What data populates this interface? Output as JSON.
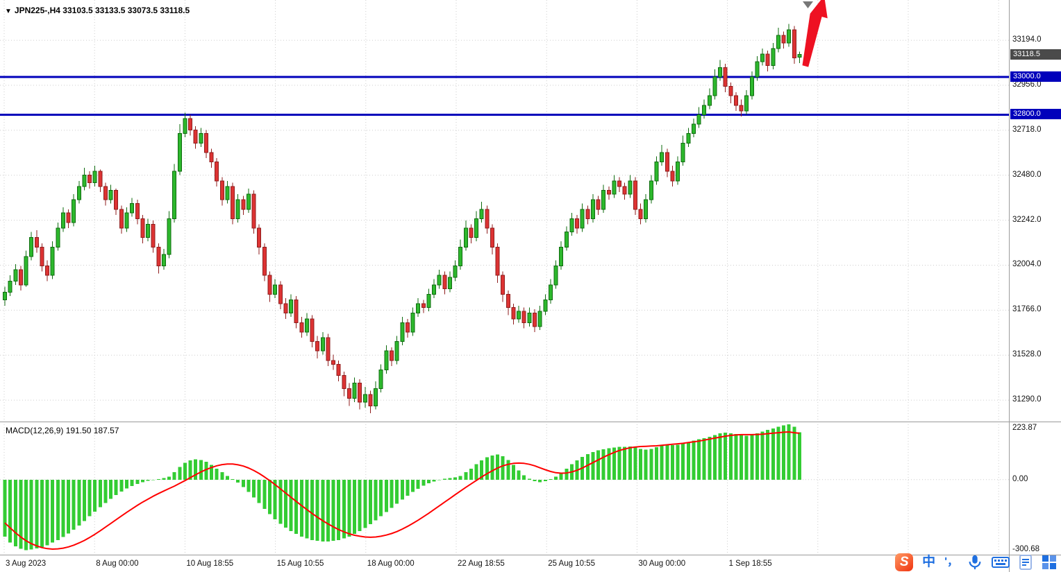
{
  "header": {
    "dropdown_icon": "▼",
    "title": "JPN225-,H4",
    "ohlc_text": "33103.5 33133.5 33073.5 33118.5"
  },
  "colors": {
    "candle_up": "#2db82d",
    "candle_up_border": "#0e6b0e",
    "candle_down": "#dd3333",
    "candle_down_border": "#8f1d1d",
    "grid": "#cccccc",
    "level_line": "#0000bb",
    "level_badge_bg": "#0000bb",
    "current_price_badge_bg": "#4a4a4a",
    "macd_histogram": "#33cc33",
    "macd_signal": "#ff0000",
    "arrow": "#ee1122",
    "shift_marker": "#777777",
    "taskbar_blue": "#1f6fe0",
    "sogou_red": "#f0330f",
    "axis_text": "#111111"
  },
  "chart_data": {
    "type": "candlestick",
    "symbol": "JPN225-",
    "timeframe": "H4",
    "current_bar": {
      "open": 33103.5,
      "high": 33133.5,
      "low": 33073.5,
      "close": 33118.5
    },
    "current_price_label": "33118.5",
    "horizontal_levels": [
      "33000.0",
      "32800.0"
    ],
    "y_axis_ticks": [
      "33194.0",
      "32956.0",
      "32718.0",
      "32480.0",
      "32242.0",
      "32004.0",
      "31766.0",
      "31528.0",
      "31290.0"
    ],
    "x_axis_labels": [
      "3 Aug 2023",
      "8 Aug 00:00",
      "10 Aug 18:55",
      "15 Aug 10:55",
      "18 Aug 00:00",
      "22 Aug 18:55",
      "25 Aug 10:55",
      "30 Aug 00:00",
      "1 Sep 18:55"
    ],
    "candles_ohlc": [
      [
        31820,
        31890,
        31790,
        31860
      ],
      [
        31860,
        31950,
        31840,
        31920
      ],
      [
        31920,
        32010,
        31900,
        31980
      ],
      [
        31980,
        32000,
        31870,
        31900
      ],
      [
        31900,
        32080,
        31890,
        32050
      ],
      [
        32050,
        32180,
        32030,
        32150
      ],
      [
        32150,
        32190,
        32070,
        32100
      ],
      [
        32100,
        32120,
        31970,
        32000
      ],
      [
        32000,
        32030,
        31920,
        31950
      ],
      [
        31950,
        32130,
        31930,
        32100
      ],
      [
        32100,
        32230,
        32080,
        32200
      ],
      [
        32200,
        32310,
        32180,
        32280
      ],
      [
        32280,
        32300,
        32200,
        32230
      ],
      [
        32230,
        32380,
        32210,
        32350
      ],
      [
        32350,
        32450,
        32330,
        32420
      ],
      [
        32420,
        32520,
        32400,
        32480
      ],
      [
        32480,
        32500,
        32410,
        32440
      ],
      [
        32440,
        32530,
        32420,
        32500
      ],
      [
        32500,
        32510,
        32390,
        32420
      ],
      [
        32420,
        32440,
        32320,
        32350
      ],
      [
        32350,
        32430,
        32330,
        32400
      ],
      [
        32400,
        32410,
        32270,
        32300
      ],
      [
        32300,
        32320,
        32170,
        32200
      ],
      [
        32200,
        32310,
        32180,
        32280
      ],
      [
        32280,
        32360,
        32260,
        32330
      ],
      [
        32330,
        32350,
        32220,
        32250
      ],
      [
        32250,
        32270,
        32120,
        32150
      ],
      [
        32150,
        32250,
        32130,
        32220
      ],
      [
        32220,
        32240,
        32070,
        32100
      ],
      [
        32100,
        32120,
        31960,
        32000
      ],
      [
        32000,
        32090,
        31980,
        32060
      ],
      [
        32060,
        32290,
        32040,
        32250
      ],
      [
        32250,
        32540,
        32230,
        32500
      ],
      [
        32500,
        32750,
        32480,
        32700
      ],
      [
        32700,
        32810,
        32680,
        32780
      ],
      [
        32780,
        32800,
        32690,
        32720
      ],
      [
        32720,
        32740,
        32620,
        32650
      ],
      [
        32650,
        32730,
        32630,
        32700
      ],
      [
        32700,
        32720,
        32570,
        32600
      ],
      [
        32600,
        32620,
        32520,
        32550
      ],
      [
        32550,
        32570,
        32420,
        32450
      ],
      [
        32450,
        32470,
        32320,
        32350
      ],
      [
        32350,
        32450,
        32330,
        32420
      ],
      [
        32420,
        32440,
        32220,
        32250
      ],
      [
        32250,
        32380,
        32230,
        32350
      ],
      [
        32350,
        32370,
        32270,
        32300
      ],
      [
        32300,
        32410,
        32280,
        32380
      ],
      [
        32380,
        32400,
        32170,
        32200
      ],
      [
        32200,
        32220,
        32060,
        32100
      ],
      [
        32100,
        32120,
        31920,
        31950
      ],
      [
        31950,
        31970,
        31810,
        31850
      ],
      [
        31850,
        31930,
        31830,
        31900
      ],
      [
        31900,
        31920,
        31770,
        31800
      ],
      [
        31800,
        31830,
        31720,
        31750
      ],
      [
        31750,
        31850,
        31730,
        31820
      ],
      [
        31820,
        31840,
        31670,
        31700
      ],
      [
        31700,
        31730,
        31620,
        31650
      ],
      [
        31650,
        31750,
        31630,
        31720
      ],
      [
        31720,
        31740,
        31570,
        31600
      ],
      [
        31600,
        31630,
        31510,
        31550
      ],
      [
        31550,
        31650,
        31530,
        31620
      ],
      [
        31620,
        31640,
        31470,
        31500
      ],
      [
        31500,
        31530,
        31450,
        31480
      ],
      [
        31480,
        31500,
        31390,
        31420
      ],
      [
        31420,
        31440,
        31310,
        31350
      ],
      [
        31350,
        31380,
        31260,
        31300
      ],
      [
        31300,
        31410,
        31280,
        31380
      ],
      [
        31380,
        31400,
        31240,
        31280
      ],
      [
        31280,
        31360,
        31250,
        31320
      ],
      [
        31320,
        31340,
        31220,
        31260
      ],
      [
        31260,
        31390,
        31240,
        31350
      ],
      [
        31350,
        31480,
        31330,
        31450
      ],
      [
        31450,
        31580,
        31430,
        31550
      ],
      [
        31550,
        31570,
        31470,
        31500
      ],
      [
        31500,
        31630,
        31480,
        31600
      ],
      [
        31600,
        31730,
        31580,
        31700
      ],
      [
        31700,
        31720,
        31620,
        31650
      ],
      [
        31650,
        31780,
        31630,
        31750
      ],
      [
        31750,
        31830,
        31730,
        31800
      ],
      [
        31800,
        31820,
        31750,
        31780
      ],
      [
        31780,
        31880,
        31760,
        31850
      ],
      [
        31850,
        31930,
        31830,
        31900
      ],
      [
        31900,
        31980,
        31880,
        31950
      ],
      [
        31950,
        31970,
        31850,
        31880
      ],
      [
        31880,
        31970,
        31860,
        31940
      ],
      [
        31940,
        32030,
        31920,
        32000
      ],
      [
        32000,
        32140,
        31980,
        32100
      ],
      [
        32100,
        32240,
        32080,
        32200
      ],
      [
        32200,
        32220,
        32120,
        32150
      ],
      [
        32150,
        32290,
        32130,
        32250
      ],
      [
        32250,
        32340,
        32230,
        32300
      ],
      [
        32300,
        32320,
        32170,
        32200
      ],
      [
        32200,
        32220,
        32060,
        32100
      ],
      [
        32100,
        32120,
        31910,
        31950
      ],
      [
        31950,
        31970,
        31810,
        31850
      ],
      [
        31850,
        31870,
        31740,
        31780
      ],
      [
        31780,
        31800,
        31690,
        31720
      ],
      [
        31720,
        31790,
        31700,
        31760
      ],
      [
        31760,
        31780,
        31670,
        31700
      ],
      [
        31700,
        31780,
        31680,
        31750
      ],
      [
        31750,
        31770,
        31650,
        31680
      ],
      [
        31680,
        31790,
        31660,
        31760
      ],
      [
        31760,
        31850,
        31740,
        31820
      ],
      [
        31820,
        31930,
        31800,
        31900
      ],
      [
        31900,
        32030,
        31880,
        32000
      ],
      [
        32000,
        32130,
        31980,
        32100
      ],
      [
        32100,
        32210,
        32080,
        32180
      ],
      [
        32180,
        32280,
        32160,
        32250
      ],
      [
        32250,
        32270,
        32170,
        32200
      ],
      [
        32200,
        32330,
        32180,
        32300
      ],
      [
        32300,
        32320,
        32220,
        32250
      ],
      [
        32250,
        32380,
        32230,
        32350
      ],
      [
        32350,
        32370,
        32270,
        32300
      ],
      [
        32300,
        32430,
        32280,
        32400
      ],
      [
        32400,
        32420,
        32350,
        32380
      ],
      [
        32380,
        32480,
        32360,
        32450
      ],
      [
        32450,
        32470,
        32390,
        32420
      ],
      [
        32420,
        32440,
        32350,
        32380
      ],
      [
        32380,
        32480,
        32360,
        32450
      ],
      [
        32450,
        32470,
        32270,
        32300
      ],
      [
        32300,
        32330,
        32220,
        32250
      ],
      [
        32250,
        32380,
        32230,
        32350
      ],
      [
        32350,
        32480,
        32330,
        32450
      ],
      [
        32450,
        32580,
        32430,
        32550
      ],
      [
        32550,
        32640,
        32530,
        32600
      ],
      [
        32600,
        32620,
        32470,
        32500
      ],
      [
        32500,
        32530,
        32420,
        32450
      ],
      [
        32450,
        32580,
        32430,
        32550
      ],
      [
        32550,
        32690,
        32530,
        32650
      ],
      [
        32650,
        32730,
        32630,
        32700
      ],
      [
        32700,
        32780,
        32680,
        32750
      ],
      [
        32750,
        32840,
        32730,
        32800
      ],
      [
        32800,
        32880,
        32780,
        32850
      ],
      [
        32850,
        32940,
        32830,
        32900
      ],
      [
        32900,
        33040,
        32880,
        33000
      ],
      [
        33000,
        33090,
        32980,
        33050
      ],
      [
        33050,
        33070,
        32920,
        32950
      ],
      [
        32950,
        32970,
        32860,
        32900
      ],
      [
        32900,
        32920,
        32820,
        32850
      ],
      [
        32850,
        32880,
        32790,
        32820
      ],
      [
        32820,
        32930,
        32800,
        32900
      ],
      [
        32900,
        33030,
        32880,
        33000
      ],
      [
        33000,
        33110,
        32980,
        33080
      ],
      [
        33080,
        33150,
        33060,
        33120
      ],
      [
        33120,
        33140,
        33030,
        33060
      ],
      [
        33060,
        33180,
        33040,
        33150
      ],
      [
        33150,
        33260,
        33130,
        33220
      ],
      [
        33220,
        33240,
        33150,
        33180
      ],
      [
        33180,
        33280,
        33160,
        33250
      ],
      [
        33250,
        33270,
        33070,
        33100
      ],
      [
        33103.5,
        33133.5,
        33073.5,
        33118.5
      ]
    ],
    "macd": {
      "label": "MACD(12,26,9)",
      "main_value": "191.50",
      "signal_value": "187.57",
      "axis_ticks": [
        "223.87",
        "0.00",
        "-300.68"
      ],
      "histogram": [
        -230,
        -255,
        -270,
        -280,
        -285,
        -283,
        -278,
        -272,
        -265,
        -255,
        -245,
        -232,
        -218,
        -202,
        -185,
        -167,
        -148,
        -130,
        -112,
        -95,
        -78,
        -62,
        -48,
        -36,
        -26,
        -17,
        -10,
        -5,
        -2,
        2,
        6,
        12,
        30,
        52,
        68,
        78,
        82,
        80,
        72,
        60,
        45,
        30,
        15,
        2,
        -12,
        -30,
        -50,
        -72,
        -95,
        -118,
        -140,
        -160,
        -178,
        -194,
        -208,
        -220,
        -230,
        -238,
        -244,
        -248,
        -250,
        -250,
        -248,
        -244,
        -238,
        -230,
        -220,
        -208,
        -195,
        -180,
        -164,
        -148,
        -131,
        -114,
        -97,
        -81,
        -65,
        -50,
        -37,
        -25,
        -15,
        -7,
        -1,
        4,
        7,
        9,
        15,
        30,
        45,
        62,
        78,
        90,
        98,
        102,
        95,
        80,
        60,
        38,
        18,
        4,
        -6,
        -10,
        -6,
        2,
        12,
        28,
        45,
        62,
        78,
        92,
        103,
        112,
        118,
        123,
        127,
        130,
        132,
        133,
        134,
        130,
        124,
        121,
        124,
        131,
        138,
        142,
        140,
        141,
        147,
        153,
        158,
        163,
        168,
        173,
        180,
        187,
        190,
        188,
        184,
        180,
        178,
        181,
        188,
        195,
        201,
        207,
        214,
        220,
        223.87,
        214,
        191.5
      ],
      "signal_line": [
        -175,
        -195,
        -215,
        -232,
        -247,
        -259,
        -268,
        -275,
        -279,
        -281,
        -280,
        -277,
        -272,
        -265,
        -256,
        -246,
        -234,
        -221,
        -207,
        -192,
        -177,
        -162,
        -147,
        -132,
        -118,
        -104,
        -91,
        -79,
        -67,
        -56,
        -46,
        -36,
        -26,
        -15,
        -4,
        8,
        20,
        31,
        41,
        49,
        56,
        61,
        63,
        63,
        60,
        55,
        47,
        37,
        25,
        11,
        -4,
        -20,
        -37,
        -54,
        -71,
        -88,
        -105,
        -121,
        -137,
        -152,
        -166,
        -179,
        -191,
        -202,
        -211,
        -219,
        -225,
        -229,
        -232,
        -233,
        -232,
        -229,
        -224,
        -218,
        -210,
        -200,
        -189,
        -177,
        -164,
        -150,
        -136,
        -121,
        -106,
        -91,
        -76,
        -61,
        -46,
        -31,
        -17,
        -3,
        11,
        24,
        36,
        47,
        56,
        62,
        66,
        67,
        66,
        62,
        56,
        48,
        40,
        33,
        28,
        26,
        27,
        31,
        38,
        47,
        58,
        69,
        80,
        91,
        101,
        110,
        118,
        124,
        129,
        132,
        134,
        135,
        136,
        137,
        139,
        141,
        143,
        145,
        147,
        150,
        153,
        156,
        160,
        164,
        168,
        172,
        176,
        179,
        181,
        182,
        182,
        182,
        183,
        184,
        186,
        188,
        190,
        192,
        193,
        190,
        187.57
      ]
    },
    "annotations": {
      "trend_arrow": "thick red arrow pointing up-right above the latest candles"
    }
  },
  "taskbar": {
    "icons": [
      {
        "name": "sogou-input",
        "glyph": "S"
      },
      {
        "name": "chinese-mode",
        "glyph": "中"
      },
      {
        "name": "punctuation-mode",
        "glyph": "'，"
      },
      {
        "name": "voice-input",
        "glyph": "microphone"
      },
      {
        "name": "soft-keyboard",
        "glyph": "keyboard"
      },
      {
        "name": "clipboard",
        "glyph": "clipboard"
      },
      {
        "name": "toolbox",
        "glyph": "grid"
      }
    ]
  }
}
